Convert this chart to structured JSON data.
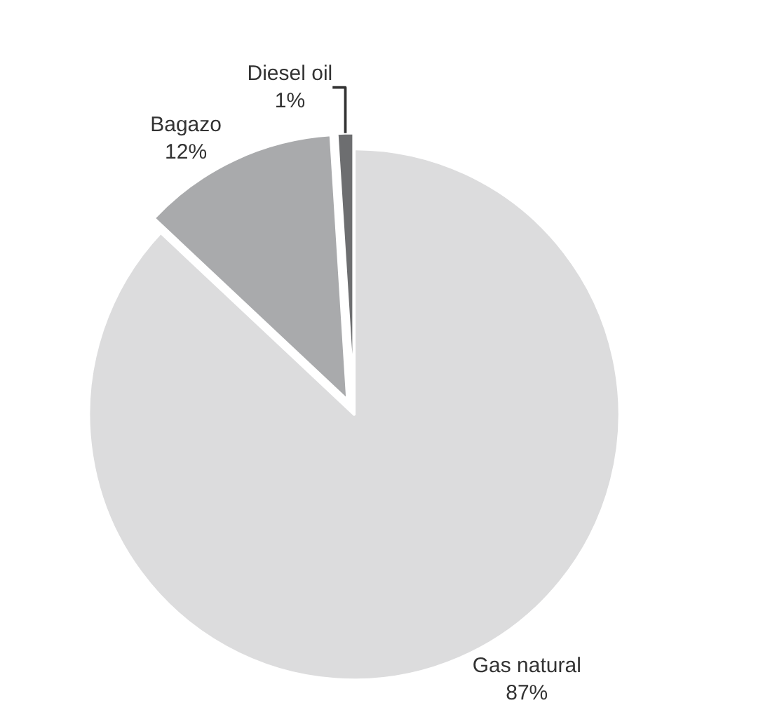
{
  "chart_data": {
    "type": "pie",
    "categories": [
      "Gas natural",
      "Bagazo",
      "Diesel oil"
    ],
    "values": [
      87,
      12,
      1
    ],
    "colors": [
      "#dcdcdd",
      "#a9aaac",
      "#6d6e70"
    ],
    "value_labels": [
      "87%",
      "12%",
      "1%"
    ],
    "legend": false
  }
}
